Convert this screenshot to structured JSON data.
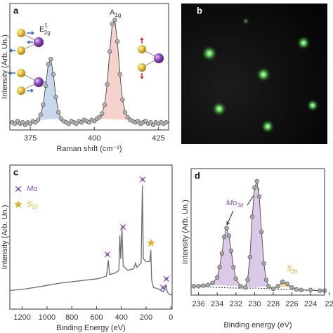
{
  "chart_data": [
    {
      "type": "line",
      "panel_label": "a",
      "ylabel": "Intensity (Arb. Un.)",
      "xlabel": "Raman shift (cm⁻¹)",
      "x": [
        368,
        369,
        370,
        371,
        372,
        373,
        374,
        375,
        376,
        377,
        378,
        379,
        380,
        381,
        382,
        383,
        384,
        385,
        386,
        387,
        388,
        389,
        390,
        391,
        392,
        393,
        394,
        395,
        396,
        397,
        398,
        399,
        400,
        401,
        402,
        403,
        404,
        405,
        406,
        407,
        408,
        409,
        410,
        411,
        412,
        413,
        414,
        415,
        416,
        417,
        418,
        419,
        420,
        421,
        422,
        423,
        424,
        425,
        426,
        427,
        428
      ],
      "values": [
        6,
        5,
        7,
        5,
        6,
        4,
        6,
        5,
        7,
        6,
        8,
        12,
        20,
        35,
        52,
        56,
        44,
        26,
        14,
        9,
        7,
        6,
        5,
        7,
        6,
        5,
        7,
        6,
        8,
        7,
        6,
        8,
        7,
        9,
        10,
        13,
        20,
        36,
        62,
        84,
        87,
        70,
        44,
        24,
        14,
        10,
        8,
        7,
        6,
        7,
        5,
        6,
        7,
        5,
        6,
        4,
        6,
        5,
        6,
        5,
        6
      ],
      "xlim": [
        367,
        429
      ],
      "ylim": [
        0,
        100
      ],
      "xticks": [
        375,
        400,
        425
      ],
      "markers": true,
      "color": "#444444",
      "marker_color": "#b5b5b5",
      "fill_colors": [
        "#c8d8ef",
        "#f5d2cc"
      ],
      "peak_labels": [
        {
          "base": "E",
          "sup": "1",
          "sub": "2g"
        },
        {
          "base": "A",
          "sub": "1g"
        }
      ]
    },
    {
      "type": "line",
      "panel_label": "c",
      "ylabel": "Intensity (Arb. Un.)",
      "xlabel": "Binding Energy (eV)",
      "x": [
        1300,
        1200,
        1100,
        1000,
        900,
        800,
        700,
        600,
        550,
        520,
        505,
        495,
        450,
        420,
        412,
        405,
        395,
        385,
        350,
        300,
        285,
        275,
        240,
        230,
        226,
        222,
        200,
        170,
        162,
        155,
        140,
        100,
        80,
        63,
        50,
        38,
        30,
        10,
        -10
      ],
      "values": [
        13,
        13.7,
        15,
        16.5,
        18,
        19,
        20,
        21,
        22,
        23,
        34,
        24,
        25,
        27,
        51,
        35,
        56,
        30,
        27,
        28,
        32,
        29,
        32,
        86,
        60,
        35,
        33,
        33,
        41,
        20,
        15,
        14,
        13,
        12,
        14,
        17,
        12,
        10,
        10
      ],
      "xlim": [
        1300,
        -10
      ],
      "ylim": [
        0,
        100
      ],
      "xticks": [
        1200,
        1000,
        800,
        600,
        400,
        200,
        0
      ],
      "markers": false,
      "color": "#6a6a6a",
      "legend": [
        {
          "base": "Mo",
          "color": "#8b52b3",
          "shape": "cross"
        },
        {
          "base": "S",
          "sub": "2s",
          "color": "#e0b12a",
          "shape": "star"
        }
      ],
      "peak_markers": [
        {
          "x": 512,
          "y": 38,
          "kind": 0
        },
        {
          "x": 387,
          "y": 57,
          "kind": 0
        },
        {
          "x": 228,
          "y": 90,
          "kind": 0
        },
        {
          "x": 160,
          "y": 46,
          "kind": 1
        },
        {
          "x": 64,
          "y": 15,
          "kind": 0
        },
        {
          "x": 36,
          "y": 21,
          "kind": 0
        }
      ]
    },
    {
      "type": "line",
      "panel_label": "d",
      "ylabel": "Intensity (Arb. Un.)",
      "xlabel": "Binding energy (eV)",
      "x": [
        236.5,
        236.0,
        235.5,
        235.0,
        234.5,
        234.0,
        233.75,
        233.5,
        233.25,
        233.0,
        232.75,
        232.5,
        232.25,
        232.0,
        231.5,
        231.0,
        230.75,
        230.5,
        230.25,
        230.0,
        229.75,
        229.5,
        229.25,
        229.0,
        228.75,
        228.5,
        228.0,
        227.5,
        227.0,
        226.5,
        226.0,
        225.5,
        225.0,
        224.0,
        223.0,
        222.5
      ],
      "values": [
        7,
        7,
        7.5,
        8,
        9.5,
        14,
        22,
        33,
        46,
        53,
        47,
        35,
        22,
        13,
        7,
        6,
        12,
        30,
        62,
        85,
        90,
        78,
        50,
        25,
        12,
        7,
        5,
        7,
        10.5,
        9,
        6,
        4.5,
        4,
        4,
        3.5,
        3.5
      ],
      "xlim": [
        236.8,
        222.5
      ],
      "ylim": [
        0,
        100
      ],
      "xticks": [
        236,
        234,
        232,
        230,
        228,
        226,
        224,
        {
          "value": 222,
          "label": "22"
        }
      ],
      "markers": true,
      "color": "#444444",
      "marker_color": "#a9a9a9",
      "fill_colors": [
        "#dcc9e8",
        "#dcc9e8",
        "#f3d690"
      ],
      "annotations": [
        {
          "base": "Mo",
          "sub": "3d",
          "color": "#8b52b3"
        },
        {
          "base": "S",
          "sub": "2s",
          "color": "#d9a520"
        }
      ]
    }
  ],
  "image_panel": {
    "panel_label": "b"
  }
}
